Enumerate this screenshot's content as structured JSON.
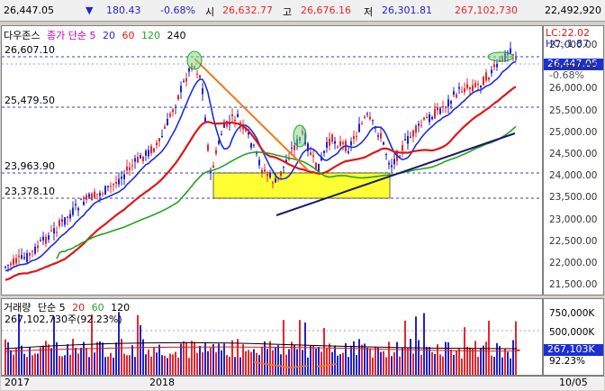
{
  "topbar": {
    "price": "26,447.05",
    "change_arrow": "▼",
    "change": "180.43",
    "change_pct": "-0.68%",
    "open_label": "시",
    "open": "26,632.77",
    "high_label": "고",
    "high": "26,676.16",
    "low_label": "저",
    "low": "26,301.81",
    "volume": "267,102,730",
    "amount": "22,492,920"
  },
  "price_pane": {
    "legend": {
      "name": "다우존스",
      "ma_label": "종가 단순 5",
      "ma20": "20",
      "ma60": "60",
      "ma120": "120",
      "ma240": "240"
    },
    "levels": [
      "26,607.10",
      "25,479.50",
      "23,963.90",
      "23,378.10"
    ],
    "lc": "LC:22.02",
    "hc": "HC:-1.87",
    "cur_price": "26,447.05",
    "cur_pct": "-0.68%",
    "yticks": [
      "27,000.00",
      "26,500.00",
      "26,000.00",
      "25,500.00",
      "25,000.00",
      "24,500.00",
      "24,000.00",
      "23,500.00",
      "23,000.00",
      "22,500.00",
      "22,000.00",
      "21,500.00"
    ]
  },
  "volume_pane": {
    "legend": {
      "name": "거래량",
      "ma_label": "단순 5",
      "ma20": "20",
      "ma60": "60",
      "ma120": "120"
    },
    "current": "267,102,730주(92.23%)",
    "yticks": [
      "750,000K",
      "500,000K",
      "250,000K"
    ],
    "cur_value": "267,103K",
    "cur_pct": "92.23%"
  },
  "date_axis": [
    "2017",
    "2018",
    "10/05"
  ],
  "colors": {
    "up": "#e8262b",
    "down": "#2222cc",
    "ma5": "#2222cc",
    "ma20": "#1b2fd8",
    "ma60": "#e0161a",
    "ma120": "#22a322",
    "ma240": "#e0161a",
    "zone": "#ffff33",
    "trend_orange": "#f07818",
    "trend_navy": "#1a1a66"
  }
}
